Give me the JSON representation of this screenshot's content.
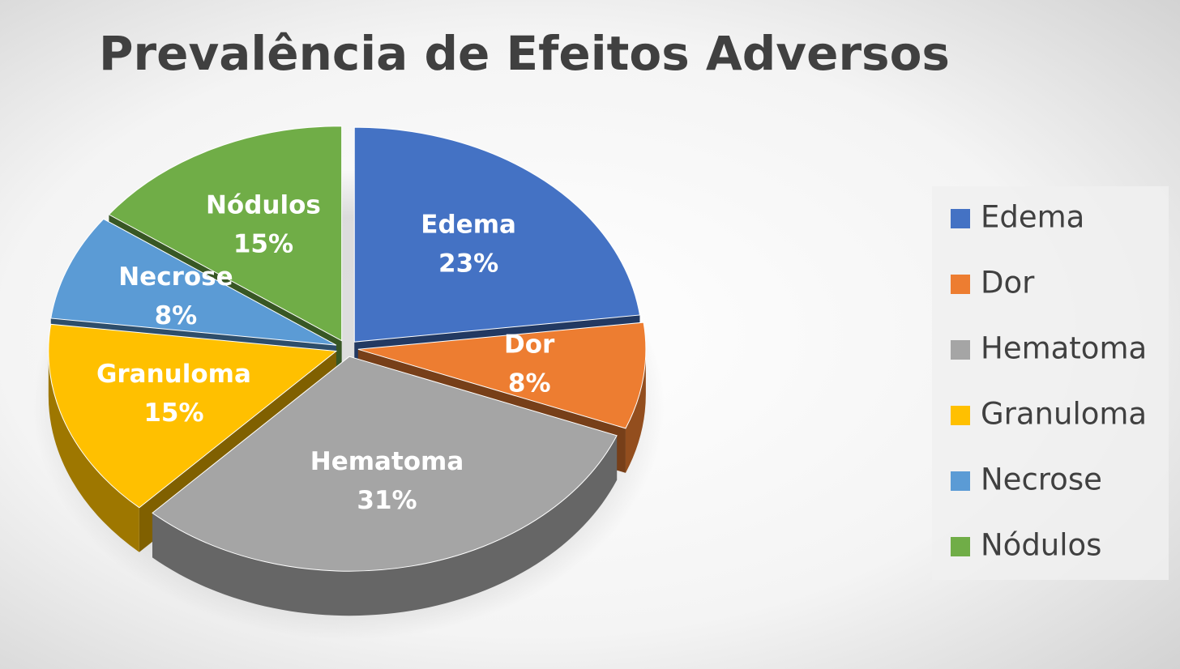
{
  "chart_data": {
    "type": "pie",
    "title": "Prevalência de Efeitos Adversos",
    "categories": [
      "Edema",
      "Dor",
      "Hematoma",
      "Granuloma",
      "Necrose",
      "Nódulos"
    ],
    "values": [
      23,
      8,
      31,
      15,
      8,
      15
    ],
    "value_labels": [
      "23%",
      "8%",
      "31%",
      "15%",
      "8%",
      "15%"
    ],
    "colors": [
      "#4472c4",
      "#ed7d31",
      "#a5a5a5",
      "#ffc000",
      "#5b9bd5",
      "#70ad47"
    ],
    "legend": "right"
  }
}
